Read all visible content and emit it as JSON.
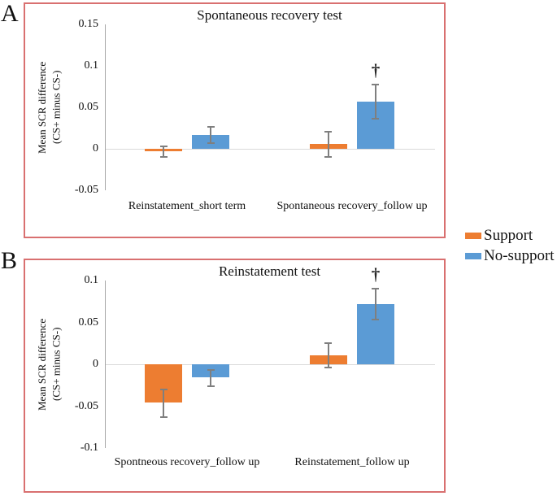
{
  "figure": {
    "panel_letters": [
      "A",
      "B"
    ]
  },
  "colors": {
    "support": "#ED7D31",
    "no_support": "#5B9BD5",
    "panel_border": "#d97070",
    "error_bar": "#7f7f7f",
    "zero_gridline": "#d9d9d9",
    "axis_line": "#a6a6a6",
    "text": "#111111"
  },
  "legend": {
    "items": [
      {
        "label": "Support",
        "color_key": "support"
      },
      {
        "label": "No-support",
        "color_key": "no_support"
      }
    ]
  },
  "chart_data": [
    {
      "id": "panel_a",
      "type": "bar",
      "panel_letter": "A",
      "title": "Spontaneous recovery test",
      "ylabel_line1": "Mean SCR difference",
      "ylabel_line2": "(CS+ minus CS-)",
      "ylim": [
        -0.05,
        0.15
      ],
      "yticks": [
        {
          "label": "0.15",
          "value": 0.15
        },
        {
          "label": "0.1",
          "value": 0.1
        },
        {
          "label": "0.05",
          "value": 0.05
        },
        {
          "label": "0",
          "value": 0
        },
        {
          "label": "-0.05",
          "value": -0.05
        }
      ],
      "categories": [
        "Reinstatement_short term",
        "Spontaneous recovery_follow up"
      ],
      "series": [
        {
          "name": "Support",
          "color_key": "support",
          "values": [
            -0.003,
            0.006
          ],
          "errors": [
            0.007,
            0.016
          ]
        },
        {
          "name": "No-support",
          "color_key": "no_support",
          "values": [
            0.017,
            0.057
          ],
          "errors": [
            0.01,
            0.021
          ]
        }
      ],
      "annotations": [
        {
          "symbol": "†",
          "category_index": 1,
          "series_index": 1
        }
      ],
      "grid": "zero-line-only",
      "legend_position": "outside-right"
    },
    {
      "id": "panel_b",
      "type": "bar",
      "panel_letter": "B",
      "title": "Reinstatement test",
      "ylabel_line1": "Mean SCR difference",
      "ylabel_line2": "(CS+ minus CS-)",
      "ylim": [
        -0.1,
        0.1
      ],
      "yticks": [
        {
          "label": "0.1",
          "value": 0.1
        },
        {
          "label": "0.05",
          "value": 0.05
        },
        {
          "label": "0",
          "value": 0
        },
        {
          "label": "-0.05",
          "value": -0.05
        },
        {
          "label": "-0.1",
          "value": -0.1
        }
      ],
      "categories": [
        "Spontneous recovery_follow up",
        "Reinstatement_follow up"
      ],
      "series": [
        {
          "name": "Support",
          "color_key": "support",
          "values": [
            -0.046,
            0.011
          ],
          "errors": [
            0.017,
            0.015
          ]
        },
        {
          "name": "No-support",
          "color_key": "no_support",
          "values": [
            -0.016,
            0.072
          ],
          "errors": [
            0.01,
            0.019
          ]
        }
      ],
      "annotations": [
        {
          "symbol": "†",
          "category_index": 1,
          "series_index": 1
        }
      ],
      "grid": "zero-line-only",
      "legend_position": "outside-right"
    }
  ]
}
